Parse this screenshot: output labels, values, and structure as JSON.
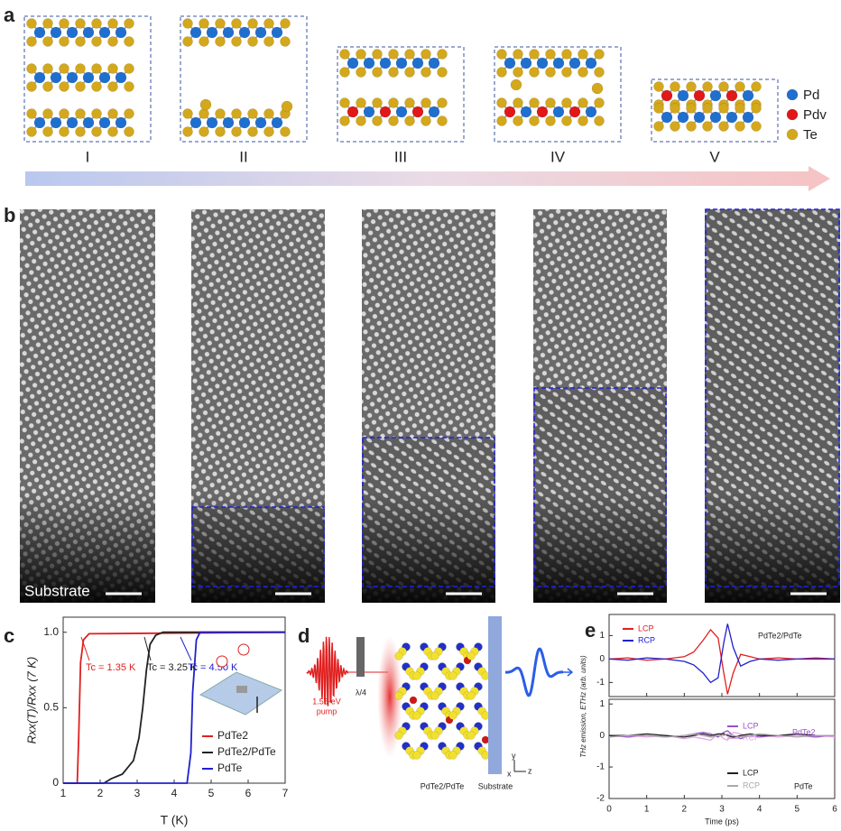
{
  "panel_labels": [
    "a",
    "b",
    "c",
    "d",
    "e"
  ],
  "panel_a": {
    "stages": [
      "I",
      "II",
      "III",
      "IV",
      "V"
    ],
    "legend": [
      "Pd",
      "Pdv",
      "Te"
    ]
  },
  "panel_b": {
    "substrate_label": "Substrate"
  },
  "panel_d": {
    "pump_label": [
      "1.55-eV",
      "pump"
    ],
    "plate_label": "λ/4",
    "sample_label": "PdTe2/PdTe",
    "substrate_label": "Substrate",
    "axes": [
      "y",
      "x",
      "z"
    ]
  },
  "chart_data": [
    {
      "type": "line",
      "xlabel": "T (K)",
      "ylabel": "Rxx(T)/Rxx (7 K)",
      "xlim": [
        1,
        7
      ],
      "ylim": [
        0,
        1.1
      ],
      "xticks": [
        1,
        2,
        3,
        4,
        5,
        6,
        7
      ],
      "yticks": [
        0,
        0.5,
        {
          "value": 1,
          "label": "1.0"
        }
      ],
      "legend": "lower right",
      "annotations": [
        {
          "text": "Tc = 1.35 K",
          "color": "#e02020"
        },
        {
          "text": "Tc = 3.25 K",
          "color": "#222222"
        },
        {
          "text": "Tc = 4.50 K",
          "color": "#2020d0"
        }
      ],
      "series": [
        {
          "name": "PdTe2",
          "color": "#e02020",
          "x": [
            1,
            1.38,
            1.42,
            1.47,
            1.55,
            1.7,
            7
          ],
          "values": [
            0,
            0,
            0.3,
            0.8,
            0.95,
            0.99,
            1
          ]
        },
        {
          "name": "PdTe2/PdTe",
          "color": "#222222",
          "x": [
            1,
            2.1,
            2.3,
            2.6,
            2.9,
            3.05,
            3.15,
            3.25,
            3.35,
            3.5,
            3.7,
            7
          ],
          "values": [
            0,
            0,
            0.03,
            0.06,
            0.15,
            0.3,
            0.5,
            0.75,
            0.92,
            0.98,
            1,
            1
          ]
        },
        {
          "name": "PdTe",
          "color": "#2020d0",
          "x": [
            1,
            4.35,
            4.45,
            4.5,
            4.6,
            4.7,
            7
          ],
          "values": [
            0,
            0,
            0.2,
            0.6,
            0.95,
            1,
            1
          ]
        }
      ]
    },
    {
      "type": "line",
      "ylabel": "THz emission, ETHz (arb. units)",
      "xlim": [
        0,
        6
      ],
      "ylim": [
        -1.6,
        1.9
      ],
      "xticks": [
        0,
        1,
        2,
        3,
        4,
        5,
        6
      ],
      "yticks": [
        -1,
        0,
        1
      ],
      "legend": "upper left",
      "annotations": [
        {
          "text": "PdTe2/PdTe",
          "color": "#222222"
        }
      ],
      "x": [
        0,
        0.5,
        1,
        1.5,
        2,
        2.25,
        2.5,
        2.7,
        2.9,
        3.05,
        3.15,
        3.3,
        3.5,
        3.75,
        4,
        4.5,
        5,
        5.5,
        6
      ],
      "series": [
        {
          "name": "LCP",
          "color": "#e02020",
          "values": [
            0,
            0.05,
            -0.05,
            0,
            0.1,
            0.3,
            0.8,
            1.25,
            0.9,
            -0.6,
            -1.5,
            -0.6,
            0.2,
            0.1,
            0,
            0.05,
            0,
            0.05,
            0
          ]
        },
        {
          "name": "RCP",
          "color": "#2020d0",
          "values": [
            0,
            -0.05,
            0.05,
            0,
            -0.1,
            -0.25,
            -0.6,
            -1,
            -0.8,
            0.7,
            1.5,
            0.5,
            -0.3,
            -0.1,
            0,
            -0.05,
            0,
            0,
            0
          ]
        }
      ]
    },
    {
      "type": "line",
      "xlabel": "Time (ps)",
      "xlim": [
        0,
        6
      ],
      "ylim": [
        -2,
        1.15
      ],
      "xticks": [
        0,
        1,
        2,
        3,
        4,
        5,
        6
      ],
      "yticks": [
        -2,
        -1,
        0,
        1
      ],
      "legend": "split",
      "annotations": [
        {
          "text": "PdTe2",
          "color": "#9a4fd0"
        },
        {
          "text": "PdTe",
          "color": "#222222"
        }
      ],
      "x": [
        0,
        0.5,
        1,
        1.5,
        2,
        2.25,
        2.5,
        2.7,
        2.9,
        3.05,
        3.15,
        3.3,
        3.5,
        3.75,
        4,
        4.5,
        5,
        5.5,
        6
      ],
      "series": [
        {
          "name": "LCP",
          "color": "#9a4fd0",
          "values": [
            0,
            -0.05,
            0,
            -0.05,
            0,
            0.05,
            0.1,
            0.05,
            -0.05,
            0.1,
            0.15,
            0,
            -0.1,
            0,
            -0.05,
            0,
            0,
            -0.05,
            0
          ]
        },
        {
          "name": "RCP",
          "color": "#e7a6ea",
          "values": [
            -0.05,
            0,
            -0.05,
            0,
            -0.1,
            -0.05,
            -0.1,
            -0.15,
            0.05,
            -0.1,
            -0.15,
            0.1,
            0.05,
            -0.05,
            0,
            -0.05,
            0,
            0,
            -0.05
          ]
        },
        {
          "name": "LCP",
          "color": "#222222",
          "values": [
            0,
            0,
            0.05,
            0,
            -0.05,
            0,
            0.05,
            0,
            0.05,
            0.05,
            0,
            -0.05,
            0,
            0.05,
            0,
            0,
            0.05,
            0,
            0
          ]
        },
        {
          "name": "RCP",
          "color": "#aaaaaa",
          "values": [
            -0.05,
            0,
            0,
            -0.05,
            0,
            0.05,
            0,
            -0.05,
            0,
            0,
            0.05,
            0,
            -0.05,
            0,
            0.05,
            0,
            -0.05,
            0,
            0
          ]
        }
      ]
    }
  ]
}
